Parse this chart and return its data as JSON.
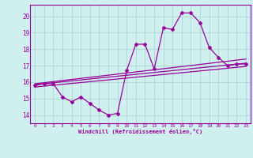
{
  "xlabel": "Windchill (Refroidissement éolien,°C)",
  "bg_color": "#d0f0f0",
  "grid_color": "#b0d8d8",
  "line_color": "#990099",
  "xlim": [
    -0.5,
    23.5
  ],
  "ylim": [
    13.5,
    20.7
  ],
  "yticks": [
    14,
    15,
    16,
    17,
    18,
    19,
    20
  ],
  "xticks": [
    0,
    1,
    2,
    3,
    4,
    5,
    6,
    7,
    8,
    9,
    10,
    11,
    12,
    13,
    14,
    15,
    16,
    17,
    18,
    19,
    20,
    21,
    22,
    23
  ],
  "curve1_x": [
    0,
    1,
    2,
    3,
    4,
    5,
    6,
    7,
    8,
    9,
    10,
    11,
    12,
    13,
    14,
    15,
    16,
    17,
    18,
    19,
    20,
    21,
    22,
    23
  ],
  "curve1_y": [
    15.8,
    15.9,
    15.9,
    15.1,
    14.8,
    15.1,
    14.7,
    14.3,
    14.0,
    14.1,
    16.7,
    18.3,
    18.3,
    16.8,
    19.3,
    19.2,
    20.2,
    20.2,
    19.6,
    18.1,
    17.5,
    17.0,
    17.1,
    17.1
  ],
  "line2_x": [
    0,
    23
  ],
  "line2_y": [
    15.85,
    17.15
  ],
  "line3_x": [
    0,
    23
  ],
  "line3_y": [
    15.9,
    17.4
  ],
  "line4_x": [
    0,
    23
  ],
  "line4_y": [
    15.7,
    16.95
  ]
}
